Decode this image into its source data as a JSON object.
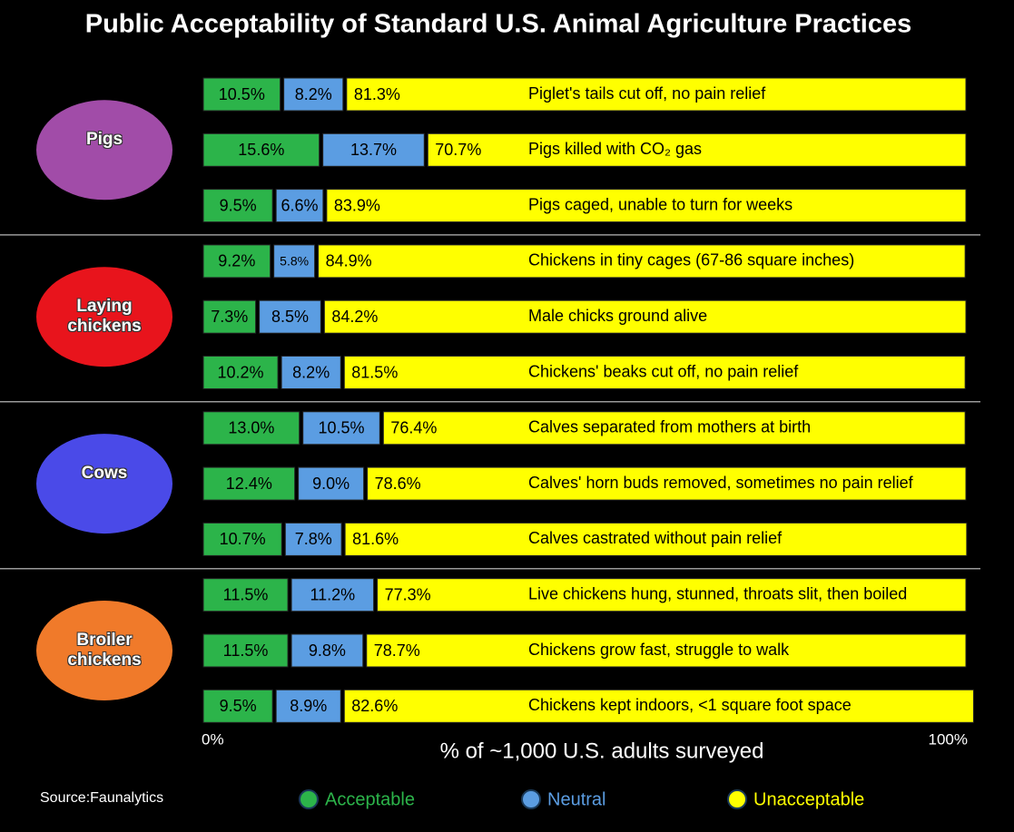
{
  "chart_data": {
    "type": "stacked-bar-horizontal",
    "title": "Public Acceptability of Standard U.S. Animal Agriculture Practices",
    "categories": [
      "Piglet's tails cut off, no pain relief",
      "Pigs killed with CO₂ gas",
      "Pigs caged, unable to turn for weeks",
      "Chickens in tiny cages (67-86 square inches)",
      "Male chicks ground alive",
      "Chickens' beaks cut off, no pain relief",
      "Calves separated from mothers at birth",
      "Calves' horn buds removed, sometimes no pain relief",
      "Calves castrated without pain relief",
      "Live chickens hung, stunned, throats slit, then boiled",
      "Chickens grow fast, struggle to walk",
      "Chickens kept indoors, <1 square foot space"
    ],
    "groups": [
      {
        "name": "Pigs",
        "color": "#a14ca8"
      },
      {
        "name": "Laying chickens",
        "color": "#e8141c"
      },
      {
        "name": "Cows",
        "color": "#4a4ae8"
      },
      {
        "name": "Broiler chickens",
        "color": "#f07a2a"
      }
    ],
    "series": [
      {
        "name": "Acceptable",
        "color": "#2cb44a",
        "values": [
          10.5,
          15.6,
          9.5,
          9.2,
          7.3,
          10.2,
          13.0,
          12.4,
          10.7,
          11.5,
          11.5,
          9.5
        ],
        "value_labels": [
          "10.5%",
          "15.6%",
          "9.5%",
          "9.2%",
          "7.3%",
          "10.2%",
          "13.0%",
          "12.4%",
          "10.7%",
          "11.5%",
          "11.5%",
          "9.5%"
        ]
      },
      {
        "name": "Neutral",
        "color": "#5b9de2",
        "values": [
          8.2,
          13.7,
          6.6,
          5.8,
          8.5,
          8.2,
          10.5,
          9.0,
          7.8,
          11.2,
          9.8,
          8.9
        ],
        "value_labels": [
          "8.2%",
          "13.7%",
          "6.6%",
          "5.8%",
          "8.5%",
          "8.2%",
          "10.5%",
          "9.0%",
          "7.8%",
          "11.2%",
          "9.8%",
          "8.9%"
        ]
      },
      {
        "name": "Unacceptable",
        "color": "#ffff00",
        "values": [
          81.3,
          70.7,
          83.9,
          84.9,
          84.2,
          81.5,
          76.4,
          78.6,
          81.6,
          77.3,
          78.7,
          82.6
        ],
        "value_labels": [
          "81.3%",
          "70.7%",
          "83.9%",
          "84.9%",
          "84.2%",
          "81.5%",
          "76.4%",
          "78.6%",
          "81.6%",
          "77.3%",
          "78.7%",
          "82.6%"
        ]
      }
    ],
    "xlim": [
      0,
      100
    ],
    "xticks": [
      {
        "value": 0,
        "label": "0%"
      },
      {
        "value": 100,
        "label": "100%"
      }
    ],
    "x_label": "% of ~1,000 U.S. adults surveyed",
    "source": "Source:Faunalytics",
    "legend": "bottom"
  }
}
